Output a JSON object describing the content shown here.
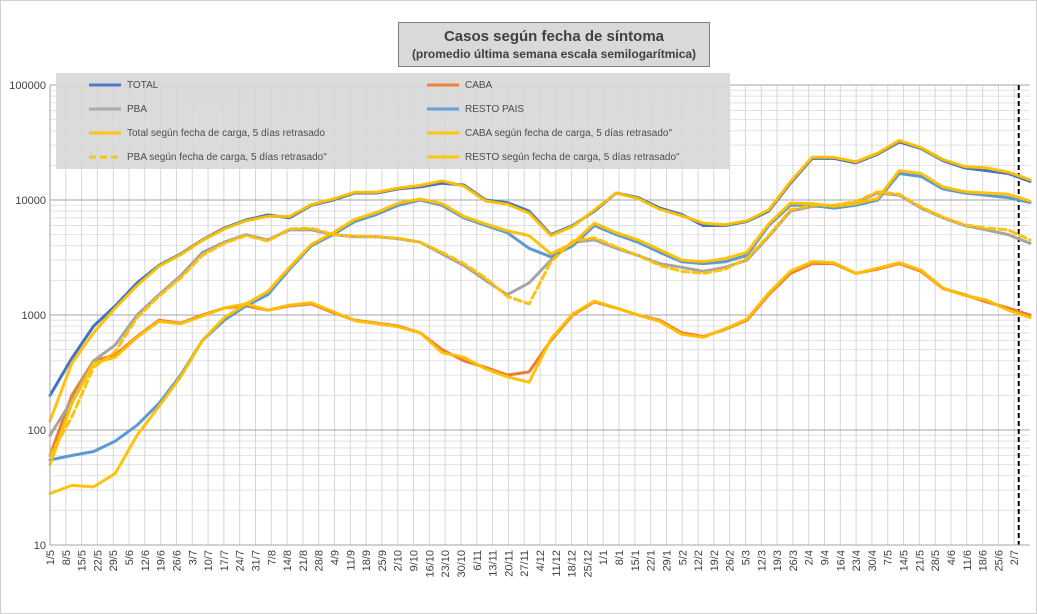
{
  "chart_data": {
    "type": "line",
    "title": "Casos según fecha de síntoma",
    "subtitle": "(promedio última semana escala semilogarítmica)",
    "y_scale": "log",
    "ylim": [
      10,
      100000
    ],
    "y_ticks": [
      "10",
      "100",
      "1000",
      "10000",
      "100000"
    ],
    "grid": true,
    "legend_position": "top-left",
    "x_tick_labels": [
      "1/5",
      "8/5",
      "15/5",
      "22/5",
      "29/5",
      "5/6",
      "12/6",
      "19/6",
      "26/6",
      "3/7",
      "10/7",
      "17/7",
      "24/7",
      "31/7",
      "7/8",
      "14/8",
      "21/8",
      "28/8",
      "4/9",
      "11/9",
      "18/9",
      "25/9",
      "2/10",
      "9/10",
      "16/10",
      "23/10",
      "30/10",
      "6/11",
      "13/11",
      "20/11",
      "27/11",
      "4/12",
      "11/12",
      "18/12",
      "25/12",
      "1/1",
      "8/1",
      "15/1",
      "22/1",
      "29/1",
      "5/2",
      "12/2",
      "19/2",
      "26/2",
      "5/3",
      "12/3",
      "19/3",
      "26/3",
      "2/4",
      "9/4",
      "16/4",
      "23/4",
      "30/4",
      "7/5",
      "14/5",
      "21/5",
      "28/5",
      "4/6",
      "11/6",
      "18/6",
      "25/6",
      "2/7"
    ],
    "x_day_step": 7,
    "x_total_days": 434,
    "marker_day": 429,
    "series": [
      {
        "name": "TOTAL",
        "color": "#4472c4",
        "dash": false,
        "values": [
          200,
          420,
          800,
          1200,
          1900,
          2700,
          3400,
          4500,
          5700,
          6700,
          7400,
          7000,
          9000,
          10000,
          11500,
          11500,
          12500,
          13000,
          14000,
          13500,
          10000,
          9500,
          8000,
          5000,
          6000,
          8000,
          11500,
          10500,
          8500,
          7500,
          6000,
          6000,
          6500,
          8000,
          14000,
          23000,
          23000,
          21000,
          25000,
          32000,
          28000,
          22000,
          19000,
          18000,
          17000,
          14500
        ]
      },
      {
        "name": "CABA",
        "color": "#ed7d31",
        "dash": false,
        "values": [
          60,
          200,
          400,
          450,
          650,
          900,
          850,
          1000,
          1150,
          1200,
          1100,
          1200,
          1250,
          1050,
          900,
          850,
          800,
          700,
          500,
          400,
          350,
          300,
          320,
          600,
          1000,
          1300,
          1150,
          1000,
          900,
          700,
          650,
          750,
          900,
          1500,
          2300,
          2800,
          2800,
          2300,
          2500,
          2800,
          2400,
          1700,
          1500,
          1300,
          1150,
          1000
        ]
      },
      {
        "name": "PBA",
        "color": "#a5a5a5",
        "dash": false,
        "values": [
          90,
          180,
          400,
          550,
          1000,
          1500,
          2200,
          3500,
          4300,
          5000,
          4500,
          5500,
          5500,
          5000,
          4800,
          4800,
          4600,
          4300,
          3400,
          2700,
          2000,
          1500,
          1900,
          3000,
          4300,
          4500,
          3800,
          3300,
          2800,
          2600,
          2400,
          2600,
          3000,
          4800,
          8000,
          8800,
          8800,
          9500,
          11500,
          11000,
          8500,
          7000,
          6000,
          5500,
          5000,
          4200
        ]
      },
      {
        "name": "RESTO PAIS",
        "color": "#5b9bd5",
        "dash": false,
        "values": [
          55,
          60,
          65,
          80,
          110,
          170,
          300,
          600,
          900,
          1200,
          1500,
          2500,
          4000,
          5000,
          6500,
          7500,
          9000,
          10000,
          9000,
          7000,
          6000,
          5200,
          3800,
          3200,
          4000,
          6000,
          5000,
          4300,
          3500,
          2900,
          2800,
          2900,
          3300,
          6000,
          9000,
          9000,
          8500,
          9000,
          10000,
          17000,
          16000,
          12500,
          11500,
          11000,
          10500,
          9500
        ]
      },
      {
        "name": "Total según fecha de carga, 5 días retrasado",
        "color": "#ffc000",
        "dash": false,
        "values": [
          120,
          380,
          700,
          1150,
          1800,
          2650,
          3350,
          4450,
          5600,
          6600,
          7200,
          7200,
          9100,
          10200,
          11700,
          11700,
          12700,
          13400,
          14700,
          13200,
          9800,
          9200,
          7700,
          4900,
          5900,
          8200,
          11500,
          10300,
          8300,
          7300,
          6300,
          6100,
          6600,
          8200,
          14400,
          23500,
          23500,
          21500,
          25500,
          33000,
          28500,
          22500,
          19500,
          19000,
          17500,
          15000
        ]
      },
      {
        "name": "CABA según fecha de carga, 5 días retrasado\"",
        "color": "#ffc000",
        "dash": false,
        "values": [
          50,
          170,
          380,
          430,
          640,
          880,
          840,
          980,
          1150,
          1250,
          1100,
          1220,
          1280,
          1070,
          890,
          840,
          790,
          700,
          470,
          430,
          340,
          290,
          260,
          620,
          1020,
          1320,
          1150,
          1000,
          880,
          680,
          640,
          760,
          920,
          1550,
          2400,
          2900,
          2850,
          2300,
          2550,
          2850,
          2450,
          1720,
          1480,
          1350,
          1100,
          950
        ]
      },
      {
        "name": "PBA según fecha de carga, 5 días retrasado\"",
        "color": "#ffc000",
        "dash": true,
        "values": [
          60,
          130,
          350,
          480,
          950,
          1450,
          2100,
          3300,
          4200,
          4900,
          4400,
          5600,
          5700,
          5000,
          4850,
          4800,
          4650,
          4300,
          3500,
          2800,
          2100,
          1450,
          1250,
          2900,
          4400,
          4700,
          3900,
          3300,
          2700,
          2400,
          2300,
          2500,
          3100,
          4900,
          8200,
          9000,
          9000,
          9700,
          11800,
          11200,
          8700,
          7100,
          6100,
          5700,
          5500,
          4500
        ]
      },
      {
        "name": "RESTO según fecha de carga, 5 días retrasado\"",
        "color": "#ffc000",
        "dash": false,
        "values": [
          28,
          33,
          32,
          42,
          90,
          160,
          290,
          600,
          950,
          1250,
          1600,
          2600,
          4100,
          5200,
          6800,
          7800,
          9400,
          10200,
          9300,
          7200,
          6200,
          5400,
          4900,
          3400,
          4200,
          6300,
          5200,
          4500,
          3700,
          3000,
          2900,
          3100,
          3500,
          6200,
          9400,
          9300,
          8800,
          9300,
          10300,
          18000,
          17000,
          13000,
          11800,
          11500,
          11200,
          9800
        ]
      }
    ]
  }
}
